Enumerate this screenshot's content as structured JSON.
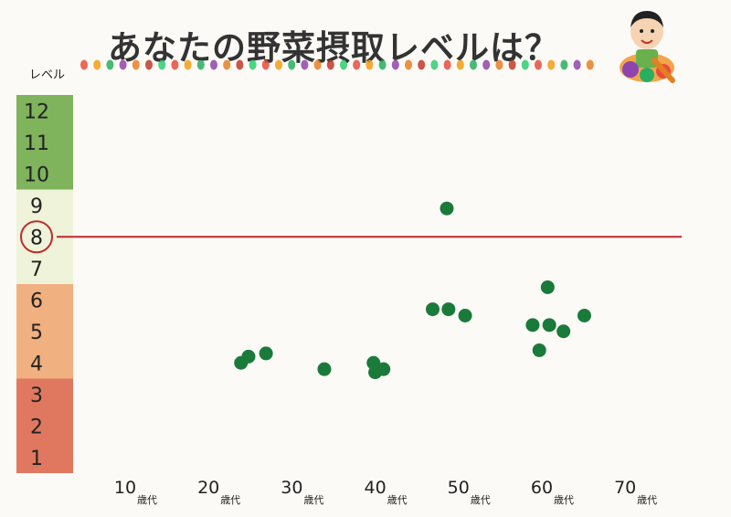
{
  "title": "あなたの野菜摂取レベルは？",
  "colors": {
    "green_band": "#7fb35c",
    "light_band": "#eef3d9",
    "orange_band": "#f0b080",
    "red_band": "#e07860",
    "target_line": "#c0282c",
    "point": "#1a7a3a"
  },
  "icons": [
    "vegetable-border-icon",
    "boy-with-vegetables-icon"
  ],
  "chart_data": {
    "type": "scatter",
    "title": "あなたの野菜摂取レベルは？",
    "ylabel": "レベル",
    "ylim": [
      0,
      12
    ],
    "xlim": [
      5,
      77
    ],
    "y_ticks": [
      "1",
      "2",
      "3",
      "4",
      "5",
      "6",
      "7",
      "8",
      "9",
      "10",
      "11",
      "12"
    ],
    "x_ticks": [
      {
        "value": 10,
        "label": "10",
        "unit": "歳代"
      },
      {
        "value": 20,
        "label": "20",
        "unit": "歳代"
      },
      {
        "value": 30,
        "label": "30",
        "unit": "歳代"
      },
      {
        "value": 40,
        "label": "40",
        "unit": "歳代"
      },
      {
        "value": 50,
        "label": "50",
        "unit": "歳代"
      },
      {
        "value": 60,
        "label": "60",
        "unit": "歳代"
      },
      {
        "value": 70,
        "label": "70",
        "unit": "歳代"
      }
    ],
    "target_level": 8,
    "bands": [
      {
        "from": 9,
        "to": 12,
        "color": "#7fb35c"
      },
      {
        "from": 6,
        "to": 9,
        "color": "#eef3d9"
      },
      {
        "from": 3,
        "to": 6,
        "color": "#f0b080"
      },
      {
        "from": 0,
        "to": 3,
        "color": "#e07860"
      }
    ],
    "points": [
      {
        "x": 23.9,
        "y": 3.5
      },
      {
        "x": 24.8,
        "y": 3.7
      },
      {
        "x": 26.9,
        "y": 3.8
      },
      {
        "x": 33.9,
        "y": 3.3
      },
      {
        "x": 39.8,
        "y": 3.5
      },
      {
        "x": 40.0,
        "y": 3.2
      },
      {
        "x": 41.0,
        "y": 3.3
      },
      {
        "x": 46.9,
        "y": 5.2
      },
      {
        "x": 48.6,
        "y": 8.4
      },
      {
        "x": 48.8,
        "y": 5.2
      },
      {
        "x": 50.8,
        "y": 5.0
      },
      {
        "x": 58.9,
        "y": 4.7
      },
      {
        "x": 59.7,
        "y": 3.9
      },
      {
        "x": 60.7,
        "y": 5.9
      },
      {
        "x": 60.9,
        "y": 4.7
      },
      {
        "x": 62.6,
        "y": 4.5
      },
      {
        "x": 65.1,
        "y": 5.0
      }
    ]
  }
}
